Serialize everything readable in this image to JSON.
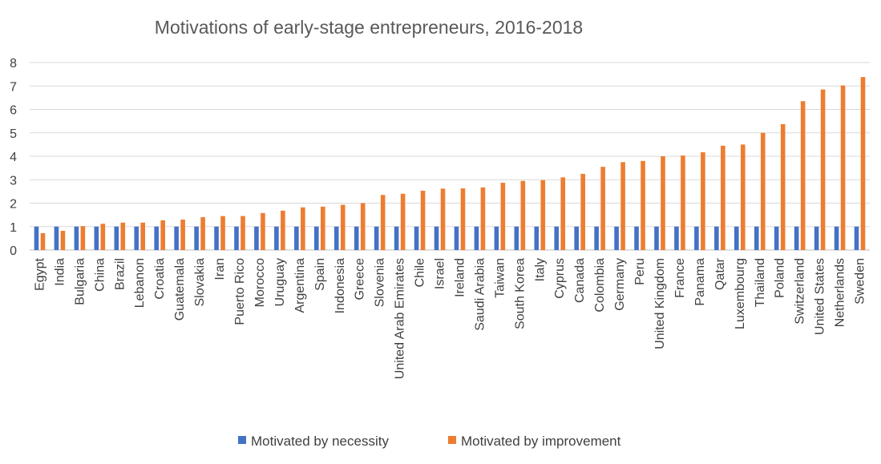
{
  "chart_data": {
    "type": "bar",
    "title": "Motivations of early-stage entrepreneurs, 2016-2018",
    "xlabel": "",
    "ylabel": "",
    "ylim": [
      0,
      8
    ],
    "yticks": [
      "0",
      "1",
      "2",
      "3",
      "4",
      "5",
      "6",
      "7",
      "8"
    ],
    "grid": true,
    "legend_position": "bottom",
    "categories": [
      "Egypt",
      "India",
      "Bulgaria",
      "China",
      "Brazil",
      "Lebanon",
      "Croatia",
      "Guatemala",
      "Slovakia",
      "Iran",
      "Puerto Rico",
      "Morocco",
      "Uruguay",
      "Argentina",
      "Spain",
      "Indonesia",
      "Greece",
      "Slovenia",
      "United Arab Emirates",
      "Chile",
      "Israel",
      "Ireland",
      "Saudi Arabia",
      "Taiwan",
      "South Korea",
      "Italy",
      "Cyprus",
      "Canada",
      "Colombia",
      "Germany",
      "Peru",
      "United Kingdom",
      "France",
      "Panama",
      "Qatar",
      "Luxembourg",
      "Thailand",
      "Poland",
      "Switzerland",
      "United States",
      "Netherlands",
      "Sweden"
    ],
    "series": [
      {
        "name": "Motivated by necessity",
        "color": "#4472C4",
        "values": [
          1,
          1,
          1,
          1,
          1,
          1,
          1,
          1,
          1,
          1,
          1,
          1,
          1,
          1,
          1,
          1,
          1,
          1,
          1,
          1,
          1,
          1,
          1,
          1,
          1,
          1,
          1,
          1,
          1,
          1,
          1,
          1,
          1,
          1,
          1,
          1,
          1,
          1,
          1,
          1,
          1,
          1
        ]
      },
      {
        "name": "Motivated by improvement",
        "color": "#ED7D31",
        "values": [
          0.72,
          0.82,
          1.02,
          1.12,
          1.17,
          1.17,
          1.27,
          1.3,
          1.4,
          1.45,
          1.45,
          1.58,
          1.68,
          1.82,
          1.85,
          1.93,
          2.0,
          2.35,
          2.4,
          2.53,
          2.62,
          2.63,
          2.67,
          2.87,
          2.95,
          2.98,
          3.1,
          3.25,
          3.55,
          3.75,
          3.8,
          4.0,
          4.03,
          4.17,
          4.45,
          4.5,
          5.0,
          5.37,
          6.35,
          6.85,
          7.02,
          7.38
        ]
      }
    ]
  }
}
